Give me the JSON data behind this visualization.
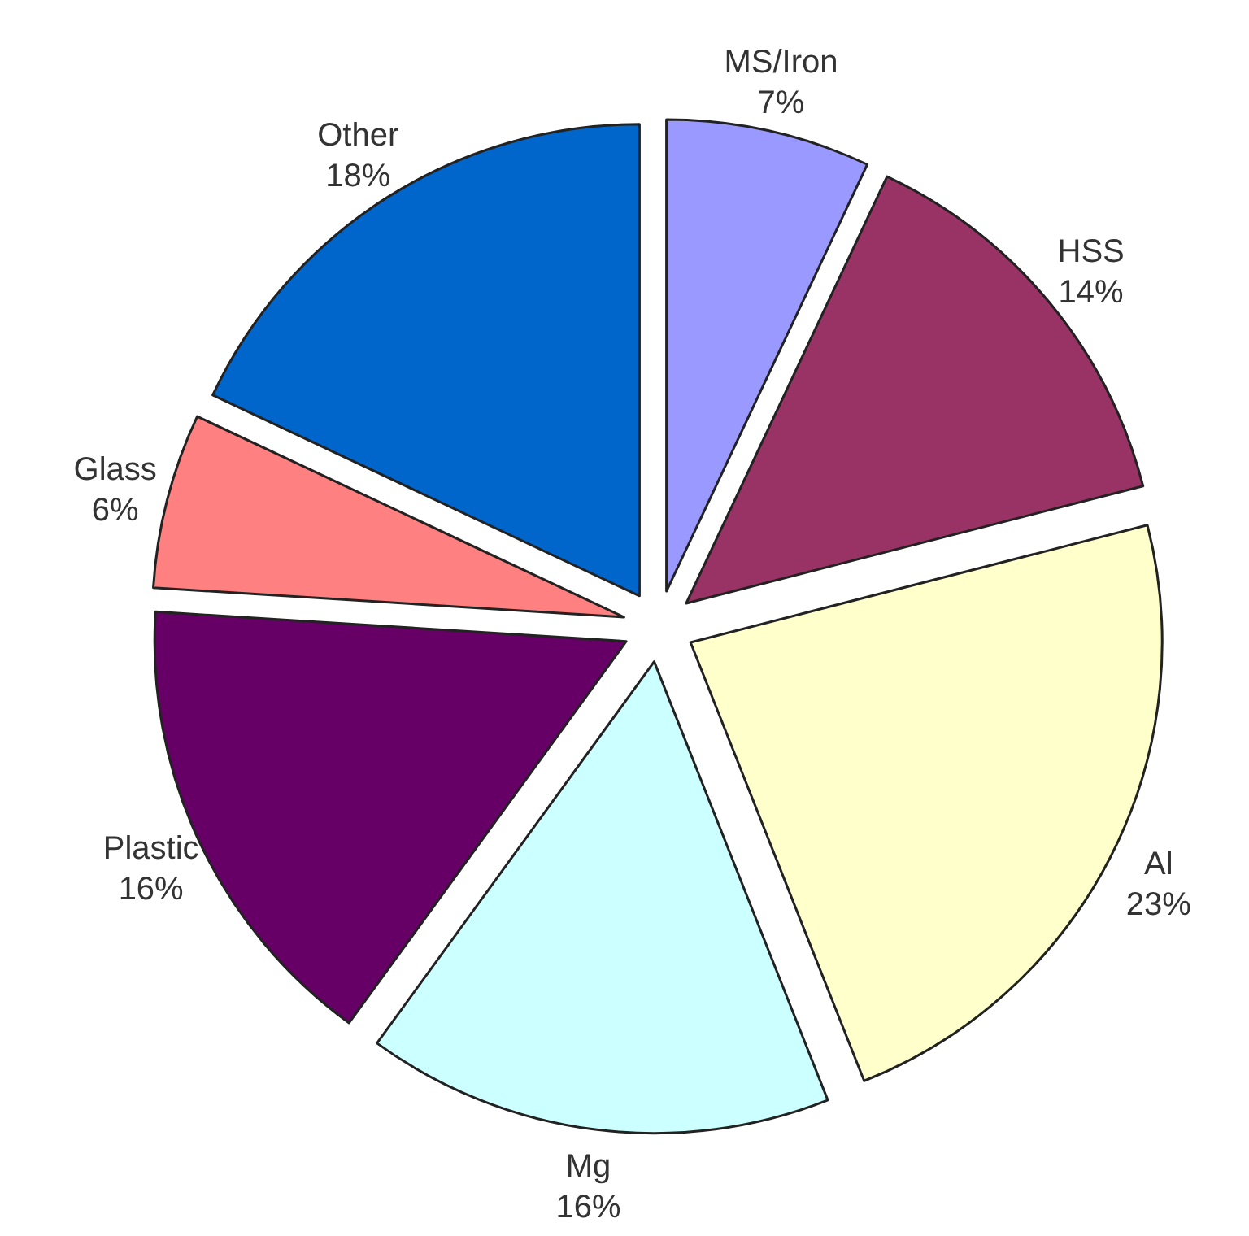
{
  "chart_data": {
    "type": "pie",
    "categories": [
      "MS/Iron",
      "HSS",
      "Al",
      "Mg",
      "Plastic",
      "Glass",
      "Other"
    ],
    "values": [
      7,
      14,
      23,
      16,
      16,
      6,
      18
    ],
    "value_labels": [
      "7%",
      "14%",
      "23%",
      "16%",
      "16%",
      "6%",
      "18%"
    ],
    "colors": [
      "#9999ff",
      "#993366",
      "#ffffcc",
      "#ccffff",
      "#660066",
      "#ff8080",
      "#0066cc"
    ]
  }
}
